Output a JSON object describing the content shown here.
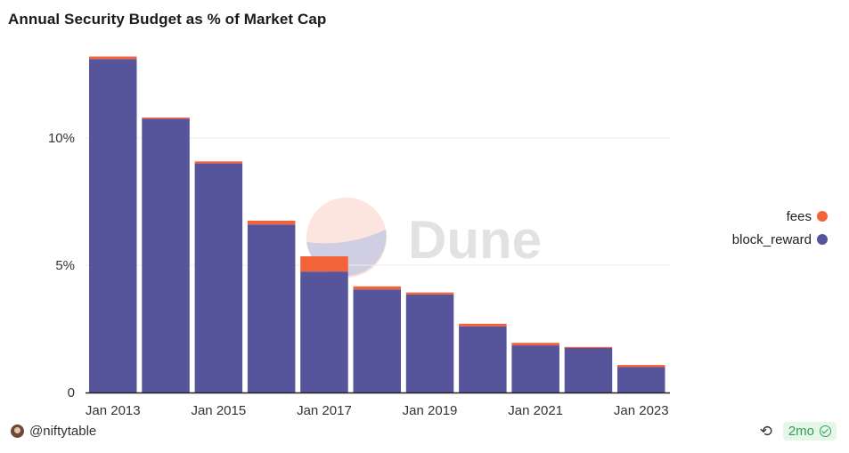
{
  "page": {
    "title": "Annual Security Budget as % of Market Cap",
    "author": "@niftytable",
    "age": "2mo",
    "watermark": "Dune"
  },
  "colors": {
    "block_reward": "#56549a",
    "fees": "#f4623a",
    "grid": "#ececec",
    "axis": "#222222"
  },
  "icons": {
    "refresh": "refresh-icon",
    "check": "check-circle-icon",
    "avatar": "avatar"
  },
  "chart_data": {
    "type": "bar",
    "stacked": true,
    "title": "Annual Security Budget as % of Market Cap",
    "x": [
      "2013",
      "2014",
      "2015",
      "2016",
      "2017",
      "2018",
      "2019",
      "2020",
      "2021",
      "2022",
      "2023"
    ],
    "xtick_labels": [
      "Jan 2013",
      "Jan 2015",
      "Jan 2017",
      "Jan 2019",
      "Jan 2021",
      "Jan 2023"
    ],
    "ytick_labels": [
      "0",
      "5%",
      "10%"
    ],
    "ylim": [
      0,
      14
    ],
    "grid": true,
    "legend": "right",
    "series": [
      {
        "name": "block_reward",
        "values": [
          13.1,
          10.75,
          9.0,
          6.6,
          4.75,
          4.05,
          3.85,
          2.6,
          1.85,
          1.75,
          1.0
        ]
      },
      {
        "name": "fees",
        "values": [
          0.1,
          0.05,
          0.08,
          0.15,
          0.6,
          0.12,
          0.08,
          0.1,
          0.1,
          0.04,
          0.08
        ]
      }
    ]
  }
}
